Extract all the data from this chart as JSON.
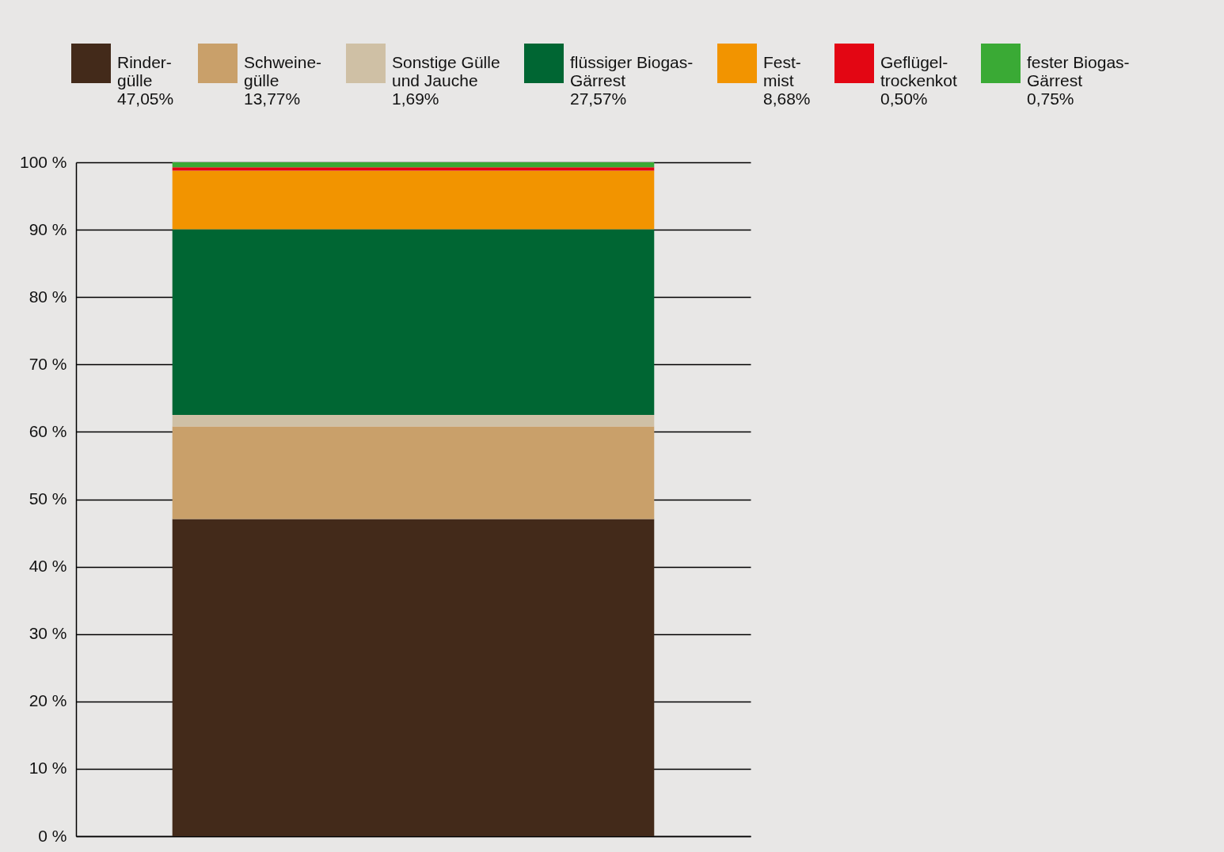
{
  "chart_data": {
    "type": "bar",
    "stacked": true,
    "categories": [
      null
    ],
    "legend": "top",
    "grid": "y",
    "tick_labels": "y",
    "ylim": [
      0,
      100
    ],
    "yticks": [
      {
        "value": 0,
        "label": "0 %"
      },
      {
        "value": 10,
        "label": "10 %"
      },
      {
        "value": 20,
        "label": "20 %"
      },
      {
        "value": 30,
        "label": "30 %"
      },
      {
        "value": 40,
        "label": "40 %"
      },
      {
        "value": 50,
        "label": "50 %"
      },
      {
        "value": 60,
        "label": "60 %"
      },
      {
        "value": 70,
        "label": "70 %"
      },
      {
        "value": 80,
        "label": "80 %"
      },
      {
        "value": 90,
        "label": "90 %"
      },
      {
        "value": 100,
        "label": "100 %"
      }
    ],
    "series": [
      {
        "name": "Rinder-\ngülle\n47,05%",
        "color": "#432a1a",
        "values": [
          47.05
        ]
      },
      {
        "name": "Schweine-\ngülle\n13,77%",
        "color": "#c9a06a",
        "values": [
          13.77
        ]
      },
      {
        "name": "Sonstige Gülle\nund Jauche\n1,69%",
        "color": "#cfc0a5",
        "values": [
          1.69
        ]
      },
      {
        "name": "flüssiger Biogas-\nGärrest\n27,57%",
        "color": "#006633",
        "values": [
          27.57
        ]
      },
      {
        "name": "Fest-\nmist\n8,68%",
        "color": "#f29400",
        "values": [
          8.68
        ]
      },
      {
        "name": "Geflügel-\ntrockenkot\n0,50%",
        "color": "#e30613",
        "values": [
          0.5
        ]
      },
      {
        "name": "fester Biogas-\nGärrest\n0,75%",
        "color": "#3aaa35",
        "values": [
          0.75
        ]
      }
    ]
  }
}
